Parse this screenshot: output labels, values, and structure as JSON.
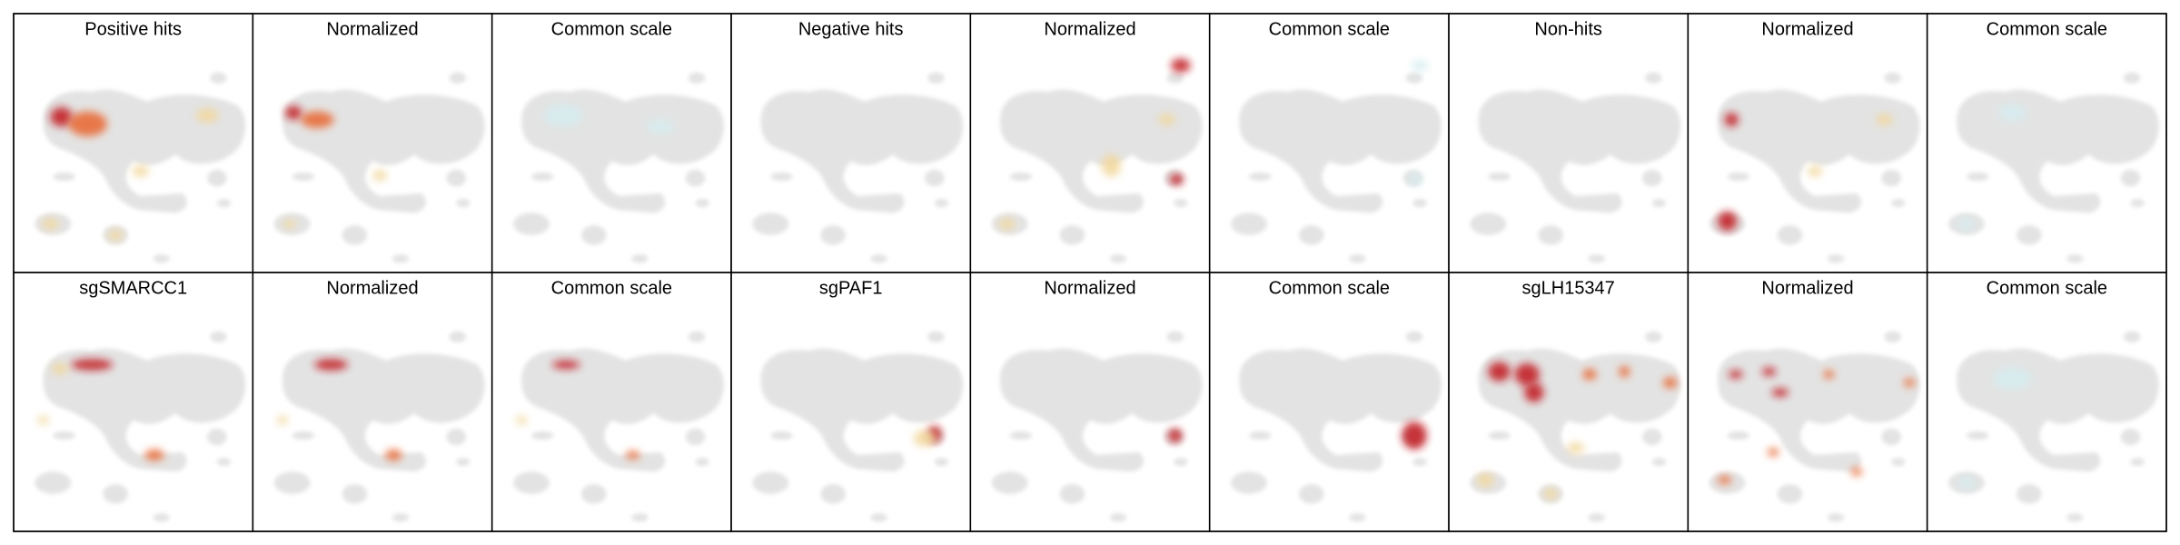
{
  "panels": [
    {
      "title": "Positive hits"
    },
    {
      "title": "Normalized"
    },
    {
      "title": "Common scale"
    },
    {
      "title": "Negative hits"
    },
    {
      "title": "Normalized"
    },
    {
      "title": "Common scale"
    },
    {
      "title": "Non-hits"
    },
    {
      "title": "Normalized"
    },
    {
      "title": "Common scale"
    },
    {
      "title": "sgSMARCC1"
    },
    {
      "title": "Normalized"
    },
    {
      "title": "Common scale"
    },
    {
      "title": "sgPAF1"
    },
    {
      "title": "Normalized"
    },
    {
      "title": "Common scale"
    },
    {
      "title": "sgLH15347"
    },
    {
      "title": "Normalized"
    },
    {
      "title": "Common scale"
    }
  ]
}
